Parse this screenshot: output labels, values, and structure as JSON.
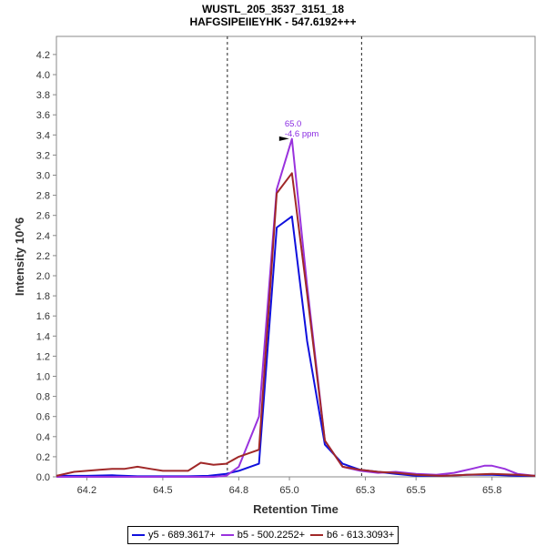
{
  "chart_data": {
    "type": "line",
    "title": "WUSTL_205_3537_3151_18",
    "subtitle": "HAFGSIPEIIEYHK - 547.6192+++",
    "xlabel": "Retention Time",
    "ylabel": "Intensity 10^6",
    "xlim": [
      64.08,
      65.97
    ],
    "ylim": [
      0,
      4.38
    ],
    "xticks": [
      64.2,
      64.5,
      64.8,
      65.0,
      65.3,
      65.5,
      65.8
    ],
    "xtick_labels": [
      "64.2",
      "64.5",
      "64.8",
      "65.0",
      "65.3",
      "65.5",
      "65.8"
    ],
    "yticks": [
      0.0,
      0.2,
      0.4,
      0.6,
      0.8,
      1.0,
      1.2,
      1.4,
      1.6,
      1.8,
      2.0,
      2.2,
      2.4,
      2.6,
      2.8,
      3.0,
      3.2,
      3.4,
      3.6,
      3.8,
      4.0,
      4.2
    ],
    "ytick_labels": [
      "0.0",
      "0.2",
      "0.4",
      "0.6",
      "0.8",
      "1.0",
      "1.2",
      "1.4",
      "1.6",
      "1.8",
      "2.0",
      "2.2",
      "2.4",
      "2.6",
      "2.8",
      "3.0",
      "3.2",
      "3.4",
      "3.6",
      "3.8",
      "4.0",
      "4.2"
    ],
    "boundary_lines": [
      64.755,
      65.285
    ],
    "annotation": {
      "x": 65.01,
      "y": 3.35,
      "lines": [
        "65.0",
        "-4.6 ppm"
      ]
    },
    "series": [
      {
        "name": "y5 - 689.3617+",
        "color": "#1010dd",
        "x": [
          64.08,
          64.15,
          64.2,
          64.3,
          64.4,
          64.5,
          64.6,
          64.68,
          64.75,
          64.8,
          64.88,
          64.95,
          65.01,
          65.07,
          65.14,
          65.21,
          65.28,
          65.35,
          65.42,
          65.5,
          65.6,
          65.7,
          65.8,
          65.9,
          65.97
        ],
        "y": [
          0.01,
          0.01,
          0.01,
          0.015,
          0.005,
          0.005,
          0.005,
          0.01,
          0.03,
          0.06,
          0.13,
          2.48,
          2.59,
          1.35,
          0.32,
          0.13,
          0.07,
          0.05,
          0.03,
          0.01,
          0.01,
          0.02,
          0.02,
          0.01,
          0.01
        ]
      },
      {
        "name": "b5 - 500.2252+",
        "color": "#9932dd",
        "x": [
          64.08,
          64.2,
          64.4,
          64.6,
          64.7,
          64.75,
          64.8,
          64.88,
          64.95,
          65.01,
          65.07,
          65.14,
          65.21,
          65.28,
          65.35,
          65.42,
          65.5,
          65.58,
          65.65,
          65.72,
          65.77,
          65.8,
          65.85,
          65.9,
          65.97
        ],
        "y": [
          0.0,
          0.0,
          0.0,
          0.0,
          0.0,
          0.01,
          0.1,
          0.6,
          2.86,
          3.36,
          1.9,
          0.36,
          0.1,
          0.06,
          0.04,
          0.05,
          0.03,
          0.02,
          0.04,
          0.08,
          0.11,
          0.11,
          0.08,
          0.03,
          0.01
        ]
      },
      {
        "name": "b6 - 613.3093+",
        "color": "#a02828",
        "x": [
          64.08,
          64.15,
          64.25,
          64.3,
          64.35,
          64.4,
          64.45,
          64.5,
          64.55,
          64.6,
          64.65,
          64.7,
          64.75,
          64.8,
          64.88,
          64.95,
          65.01,
          65.07,
          65.14,
          65.21,
          65.28,
          65.35,
          65.42,
          65.5,
          65.6,
          65.7,
          65.8,
          65.9,
          65.97
        ],
        "y": [
          0.01,
          0.05,
          0.07,
          0.08,
          0.08,
          0.1,
          0.08,
          0.06,
          0.06,
          0.06,
          0.14,
          0.12,
          0.13,
          0.2,
          0.27,
          2.82,
          3.02,
          1.82,
          0.36,
          0.1,
          0.07,
          0.05,
          0.04,
          0.02,
          0.01,
          0.02,
          0.03,
          0.02,
          0.01
        ]
      }
    ]
  }
}
